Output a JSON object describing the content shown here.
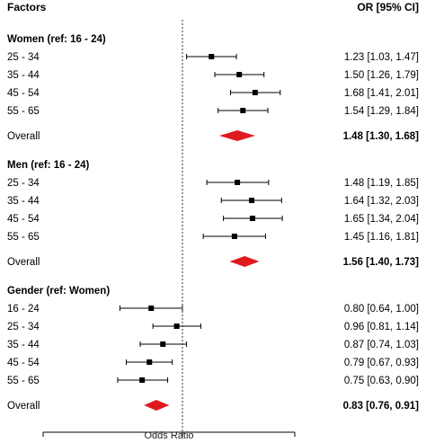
{
  "header": {
    "left": "Factors",
    "right": "OR [95% CI]"
  },
  "axis": {
    "xlabel": "Odds Ratio",
    "ticks": [
      "0.37",
      "1",
      "2.23"
    ]
  },
  "colors": {
    "summary_diamond": "#e0191f",
    "point": "#000000",
    "line": "#000000"
  },
  "chart_data": {
    "type": "forest",
    "xscale": "log",
    "xlim": [
      0.37,
      2.23
    ],
    "reference_line": 1,
    "xlabel": "Odds Ratio",
    "groups": [
      {
        "title": "Women (ref: 16 - 24)",
        "rows": [
          {
            "label": "25 - 34",
            "or": 1.23,
            "lo": 1.03,
            "hi": 1.47,
            "text": "1.23 [1.03, 1.47]"
          },
          {
            "label": "35 - 44",
            "or": 1.5,
            "lo": 1.26,
            "hi": 1.79,
            "text": "1.50 [1.26, 1.79]"
          },
          {
            "label": "45 - 54",
            "or": 1.68,
            "lo": 1.41,
            "hi": 2.01,
            "text": "1.68 [1.41, 2.01]"
          },
          {
            "label": "55 - 65",
            "or": 1.54,
            "lo": 1.29,
            "hi": 1.84,
            "text": "1.54 [1.29, 1.84]"
          }
        ],
        "overall": {
          "label": "Overall",
          "or": 1.48,
          "lo": 1.3,
          "hi": 1.68,
          "text": "1.48 [1.30, 1.68]"
        }
      },
      {
        "title": "Men (ref: 16 - 24)",
        "rows": [
          {
            "label": "25 - 34",
            "or": 1.48,
            "lo": 1.19,
            "hi": 1.85,
            "text": "1.48 [1.19, 1.85]"
          },
          {
            "label": "35 - 44",
            "or": 1.64,
            "lo": 1.32,
            "hi": 2.03,
            "text": "1.64 [1.32, 2.03]"
          },
          {
            "label": "45 - 54",
            "or": 1.65,
            "lo": 1.34,
            "hi": 2.04,
            "text": "1.65 [1.34, 2.04]"
          },
          {
            "label": "55 - 65",
            "or": 1.45,
            "lo": 1.16,
            "hi": 1.81,
            "text": "1.45 [1.16, 1.81]"
          }
        ],
        "overall": {
          "label": "Overall",
          "or": 1.56,
          "lo": 1.4,
          "hi": 1.73,
          "text": "1.56 [1.40, 1.73]"
        }
      },
      {
        "title": "Gender (ref: Women)",
        "rows": [
          {
            "label": "16 - 24",
            "or": 0.8,
            "lo": 0.64,
            "hi": 1.0,
            "text": "0.80 [0.64, 1.00]"
          },
          {
            "label": "25 - 34",
            "or": 0.96,
            "lo": 0.81,
            "hi": 1.14,
            "text": "0.96 [0.81, 1.14]"
          },
          {
            "label": "35 - 44",
            "or": 0.87,
            "lo": 0.74,
            "hi": 1.03,
            "text": "0.87 [0.74, 1.03]"
          },
          {
            "label": "45 - 54",
            "or": 0.79,
            "lo": 0.67,
            "hi": 0.93,
            "text": "0.79 [0.67, 0.93]"
          },
          {
            "label": "55 - 65",
            "or": 0.75,
            "lo": 0.63,
            "hi": 0.9,
            "text": "0.75 [0.63, 0.90]"
          }
        ],
        "overall": {
          "label": "Overall",
          "or": 0.83,
          "lo": 0.76,
          "hi": 0.91,
          "text": "0.83 [0.76, 0.91]"
        }
      }
    ]
  }
}
